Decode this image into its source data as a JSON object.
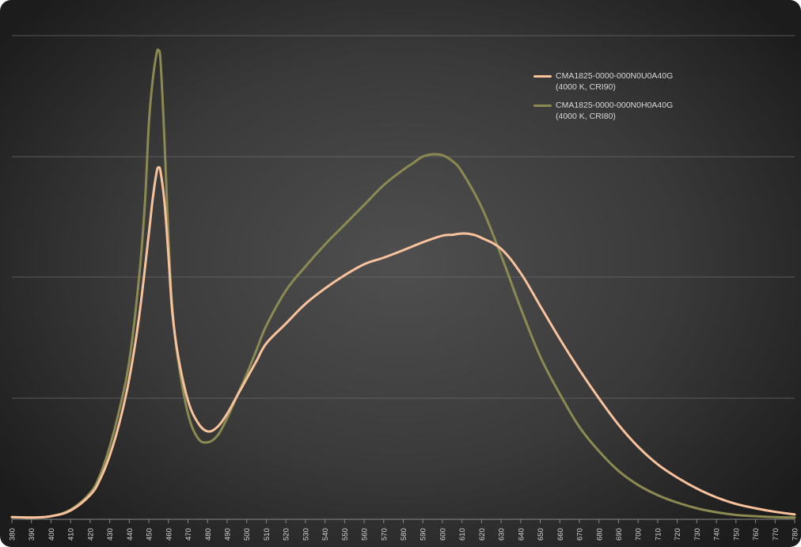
{
  "chart_data": {
    "type": "line",
    "title": "",
    "xlabel": "",
    "ylabel": "",
    "xlim": [
      380,
      780
    ],
    "ylim": [
      0,
      1.1
    ],
    "grid": true,
    "legend_position": "top-right",
    "x_ticks": [
      380,
      390,
      400,
      410,
      420,
      430,
      440,
      450,
      460,
      470,
      480,
      490,
      500,
      510,
      520,
      530,
      540,
      550,
      560,
      570,
      580,
      590,
      600,
      610,
      620,
      630,
      640,
      650,
      660,
      670,
      680,
      690,
      700,
      710,
      720,
      730,
      740,
      750,
      760,
      770,
      780
    ],
    "series": [
      {
        "name": "CMA1825-0000-000N0U0A40G",
        "name_line2": "(4000 K, CRI90)",
        "color": "#f7c29c",
        "x": [
          380,
          390,
          400,
          410,
          420,
          425,
          430,
          435,
          440,
          445,
          450,
          452,
          454,
          455,
          456,
          458,
          460,
          462,
          465,
          470,
          475,
          480,
          485,
          490,
          495,
          500,
          505,
          510,
          520,
          530,
          540,
          550,
          560,
          570,
          580,
          590,
          600,
          605,
          610,
          615,
          620,
          630,
          640,
          650,
          660,
          670,
          680,
          690,
          700,
          710,
          720,
          730,
          740,
          750,
          760,
          770,
          780
        ],
        "y": [
          0.005,
          0.004,
          0.007,
          0.02,
          0.055,
          0.09,
          0.145,
          0.22,
          0.32,
          0.46,
          0.65,
          0.73,
          0.79,
          0.8,
          0.79,
          0.72,
          0.6,
          0.47,
          0.37,
          0.27,
          0.22,
          0.2,
          0.21,
          0.24,
          0.28,
          0.32,
          0.36,
          0.4,
          0.445,
          0.49,
          0.525,
          0.555,
          0.58,
          0.595,
          0.612,
          0.63,
          0.645,
          0.647,
          0.65,
          0.648,
          0.64,
          0.615,
          0.56,
          0.485,
          0.41,
          0.34,
          0.275,
          0.215,
          0.165,
          0.125,
          0.095,
          0.07,
          0.05,
          0.035,
          0.025,
          0.017,
          0.011
        ]
      },
      {
        "name": "CMA1825-0000-000N0H0A40G",
        "name_line2": "(4000 K, CRI80)",
        "color": "#8a8a52",
        "x": [
          380,
          390,
          400,
          410,
          420,
          425,
          430,
          435,
          440,
          445,
          448,
          450,
          452,
          454,
          455,
          456,
          458,
          460,
          462,
          465,
          470,
          475,
          480,
          485,
          490,
          495,
          500,
          505,
          510,
          520,
          530,
          540,
          550,
          560,
          570,
          580,
          585,
          590,
          595,
          600,
          605,
          610,
          620,
          630,
          640,
          650,
          660,
          670,
          680,
          690,
          700,
          710,
          720,
          730,
          740,
          750,
          760,
          770,
          780
        ],
        "y": [
          0.005,
          0.004,
          0.007,
          0.022,
          0.06,
          0.1,
          0.165,
          0.25,
          0.36,
          0.55,
          0.72,
          0.9,
          1.0,
          1.06,
          1.065,
          1.04,
          0.86,
          0.64,
          0.48,
          0.36,
          0.24,
          0.185,
          0.175,
          0.19,
          0.23,
          0.28,
          0.33,
          0.385,
          0.44,
          0.52,
          0.575,
          0.625,
          0.67,
          0.715,
          0.76,
          0.795,
          0.81,
          0.825,
          0.83,
          0.828,
          0.815,
          0.79,
          0.71,
          0.6,
          0.48,
          0.37,
          0.285,
          0.21,
          0.155,
          0.11,
          0.078,
          0.055,
          0.038,
          0.025,
          0.016,
          0.01,
          0.007,
          0.005,
          0.004
        ]
      }
    ]
  }
}
